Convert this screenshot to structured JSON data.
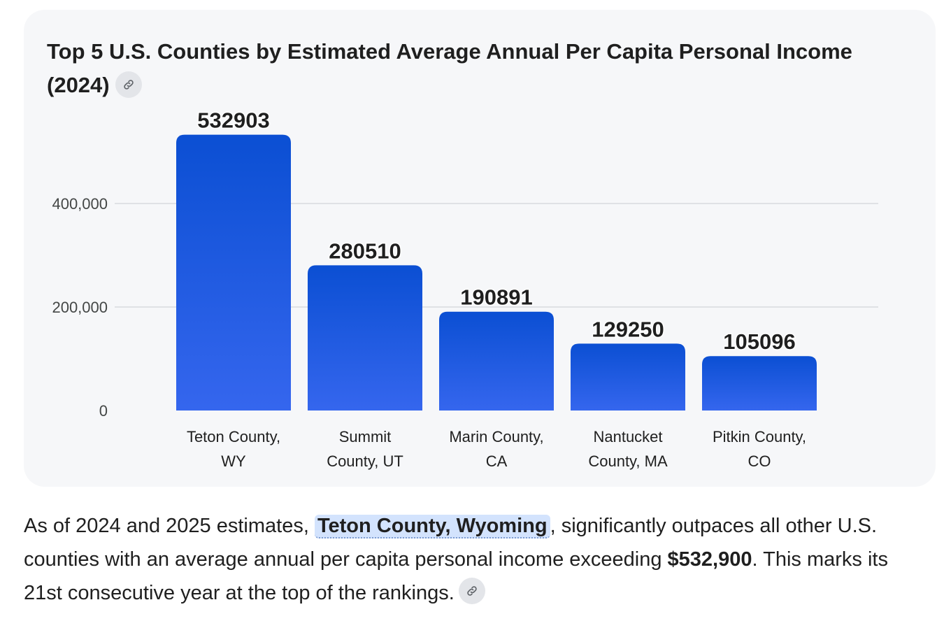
{
  "chart_card": {
    "title": "Top 5 U.S. Counties by Estimated Average Annual Per Capita Personal Income (2024)",
    "link_icon": "link-icon"
  },
  "chart_data": {
    "type": "bar",
    "title": "Top 5 U.S. Counties by Estimated Average Annual Per Capita Personal Income (2024)",
    "categories": [
      [
        "Teton County,",
        "WY"
      ],
      [
        "Summit",
        "County, UT"
      ],
      [
        "Marin County,",
        "CA"
      ],
      [
        "Nantucket",
        "County, MA"
      ],
      [
        "Pitkin County,",
        "CO"
      ]
    ],
    "values": [
      532903,
      280510,
      190891,
      129250,
      105096
    ],
    "xlabel": "",
    "ylabel": "",
    "ylim": [
      0,
      540000
    ],
    "yticks": [
      0,
      200000,
      400000
    ],
    "ytick_labels": [
      "0",
      "200,000",
      "400,000"
    ],
    "grid": true,
    "bar_color_top": "#0b4fd3",
    "bar_color_bottom": "#3566ee"
  },
  "answer": {
    "part1": "As of 2024 and 2025 estimates, ",
    "entity": "Teton County, Wyoming",
    "part2": ", significantly outpaces all other U.S. counties with an average annual per capita personal income exceeding ",
    "amount": "$532,900",
    "part3": ". This marks its 21st consecutive year at the top of the rankings."
  }
}
